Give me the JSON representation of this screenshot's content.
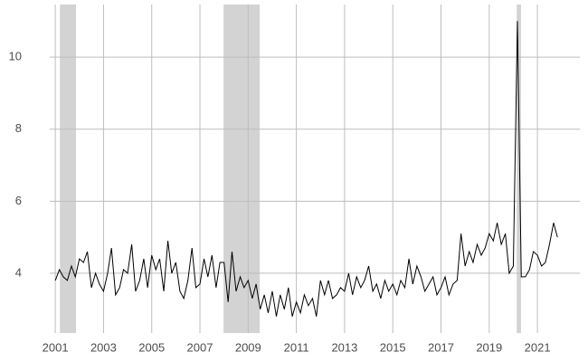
{
  "chart_data": {
    "type": "line",
    "x": [
      2001,
      2001.17,
      2001.33,
      2001.5,
      2001.67,
      2001.83,
      2002,
      2002.17,
      2002.33,
      2002.5,
      2002.67,
      2002.83,
      2003,
      2003.17,
      2003.33,
      2003.5,
      2003.67,
      2003.83,
      2004,
      2004.17,
      2004.33,
      2004.5,
      2004.67,
      2004.83,
      2005,
      2005.17,
      2005.33,
      2005.5,
      2005.67,
      2005.83,
      2006,
      2006.17,
      2006.33,
      2006.5,
      2006.67,
      2006.83,
      2007,
      2007.17,
      2007.33,
      2007.5,
      2007.67,
      2007.83,
      2008,
      2008.17,
      2008.33,
      2008.5,
      2008.67,
      2008.83,
      2009,
      2009.17,
      2009.33,
      2009.5,
      2009.67,
      2009.83,
      2010,
      2010.17,
      2010.33,
      2010.5,
      2010.67,
      2010.83,
      2011,
      2011.17,
      2011.33,
      2011.5,
      2011.67,
      2011.83,
      2012,
      2012.17,
      2012.33,
      2012.5,
      2012.67,
      2012.83,
      2013,
      2013.17,
      2013.33,
      2013.5,
      2013.67,
      2013.83,
      2014,
      2014.17,
      2014.33,
      2014.5,
      2014.67,
      2014.83,
      2015,
      2015.17,
      2015.33,
      2015.5,
      2015.67,
      2015.83,
      2016,
      2016.17,
      2016.33,
      2016.5,
      2016.67,
      2016.83,
      2017,
      2017.17,
      2017.33,
      2017.5,
      2017.67,
      2017.83,
      2018,
      2018.17,
      2018.33,
      2018.5,
      2018.67,
      2018.83,
      2019,
      2019.17,
      2019.33,
      2019.5,
      2019.67,
      2019.83,
      2020,
      2020.17,
      2020.33,
      2020.5,
      2020.67,
      2020.83,
      2021,
      2021.17,
      2021.33,
      2021.5,
      2021.67,
      2021.83
    ],
    "values": [
      3.8,
      4.1,
      3.9,
      3.8,
      4.2,
      3.9,
      4.4,
      4.3,
      4.6,
      3.6,
      4.0,
      3.7,
      3.5,
      4.0,
      4.7,
      3.4,
      3.6,
      4.1,
      4.0,
      4.8,
      3.5,
      3.8,
      4.4,
      3.6,
      4.5,
      4.1,
      4.4,
      3.5,
      4.9,
      4.0,
      4.3,
      3.5,
      3.3,
      3.8,
      4.7,
      3.6,
      3.7,
      4.4,
      3.9,
      4.5,
      3.6,
      4.3,
      4.3,
      3.2,
      4.6,
      3.5,
      3.9,
      3.6,
      3.8,
      3.3,
      3.7,
      3.0,
      3.4,
      2.9,
      3.5,
      2.8,
      3.4,
      3.0,
      3.6,
      2.8,
      3.2,
      2.9,
      3.4,
      3.1,
      3.3,
      2.8,
      3.8,
      3.4,
      3.8,
      3.3,
      3.4,
      3.6,
      3.5,
      4.0,
      3.4,
      3.9,
      3.6,
      3.8,
      4.2,
      3.5,
      3.7,
      3.3,
      3.8,
      3.5,
      3.7,
      3.4,
      3.8,
      3.6,
      4.4,
      3.7,
      4.2,
      3.9,
      3.5,
      3.7,
      3.9,
      3.4,
      3.6,
      3.9,
      3.4,
      3.7,
      3.8,
      5.1,
      4.2,
      4.6,
      4.3,
      4.8,
      4.5,
      4.7,
      5.1,
      4.9,
      5.4,
      4.8,
      5.1,
      4.0,
      4.2,
      11.0,
      3.9,
      3.9,
      4.1,
      4.6,
      4.5,
      4.2,
      4.3,
      4.8,
      5.4,
      5.0
    ],
    "color": "#000000",
    "shaded_regions": [
      [
        2001.19,
        2001.86
      ],
      [
        2007.98,
        2009.48
      ],
      [
        2020.14,
        2020.32
      ]
    ],
    "shade_color": "#d3d3d3",
    "xlim": [
      2000.77,
      2022.76
    ],
    "xticks": [
      2001,
      2003,
      2005,
      2007,
      2009,
      2011,
      2013,
      2015,
      2017,
      2019,
      2021
    ],
    "ylim": [
      2.34,
      11.46
    ],
    "yticks": [
      4,
      6,
      8,
      10
    ],
    "grid": true
  }
}
